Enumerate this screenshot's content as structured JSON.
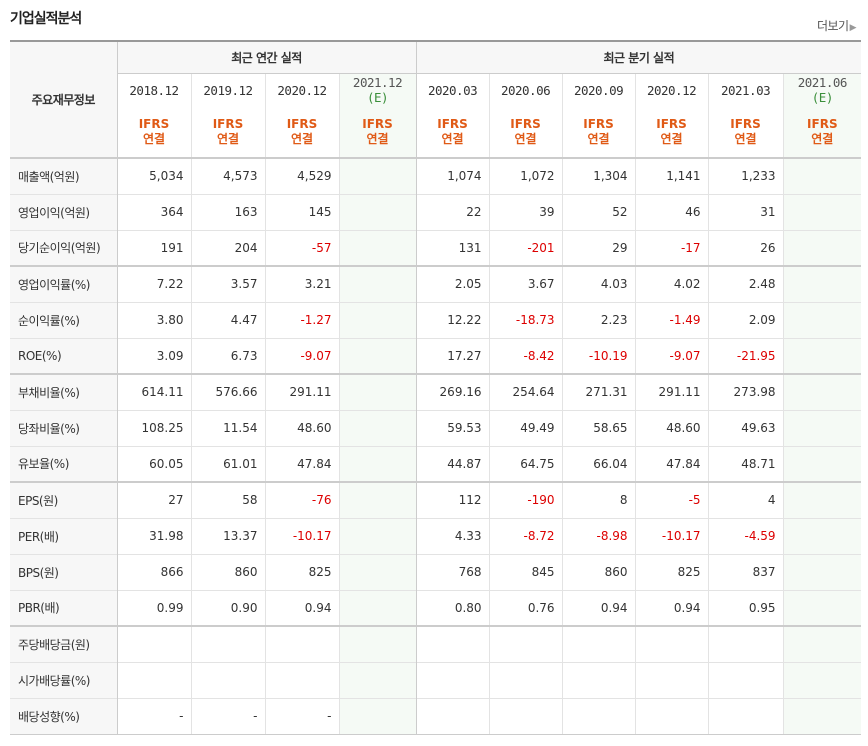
{
  "header": {
    "title": "기업실적분석",
    "more_label": "더보기"
  },
  "table": {
    "corner_label": "주요재무정보",
    "groups": {
      "annual": "최근 연간 실적",
      "quarterly": "최근 분기 실적"
    },
    "periods": [
      "2018.12",
      "2019.12",
      "2020.12",
      "2021.12",
      "2020.03",
      "2020.06",
      "2020.09",
      "2020.12",
      "2021.03",
      "2021.06"
    ],
    "estimate_mark": "(E)",
    "ifrs": "IFRS",
    "consolidated": "연결",
    "rows": [
      {
        "label": "매출액(억원)",
        "values": [
          "5,034",
          "4,573",
          "4,529",
          "",
          "1,074",
          "1,072",
          "1,304",
          "1,141",
          "1,233",
          ""
        ]
      },
      {
        "label": "영업이익(억원)",
        "values": [
          "364",
          "163",
          "145",
          "",
          "22",
          "39",
          "52",
          "46",
          "31",
          ""
        ]
      },
      {
        "label": "당기순이익(억원)",
        "values": [
          "191",
          "204",
          "-57",
          "",
          "131",
          "-201",
          "29",
          "-17",
          "26",
          ""
        ]
      },
      {
        "label": "영업이익률(%)",
        "values": [
          "7.22",
          "3.57",
          "3.21",
          "",
          "2.05",
          "3.67",
          "4.03",
          "4.02",
          "2.48",
          ""
        ]
      },
      {
        "label": "순이익률(%)",
        "values": [
          "3.80",
          "4.47",
          "-1.27",
          "",
          "12.22",
          "-18.73",
          "2.23",
          "-1.49",
          "2.09",
          ""
        ]
      },
      {
        "label": "ROE(%)",
        "values": [
          "3.09",
          "6.73",
          "-9.07",
          "",
          "17.27",
          "-8.42",
          "-10.19",
          "-9.07",
          "-21.95",
          ""
        ]
      },
      {
        "label": "부채비율(%)",
        "values": [
          "614.11",
          "576.66",
          "291.11",
          "",
          "269.16",
          "254.64",
          "271.31",
          "291.11",
          "273.98",
          ""
        ]
      },
      {
        "label": "당좌비율(%)",
        "values": [
          "108.25",
          "11.54",
          "48.60",
          "",
          "59.53",
          "49.49",
          "58.65",
          "48.60",
          "49.63",
          ""
        ]
      },
      {
        "label": "유보율(%)",
        "values": [
          "60.05",
          "61.01",
          "47.84",
          "",
          "44.87",
          "64.75",
          "66.04",
          "47.84",
          "48.71",
          ""
        ]
      },
      {
        "label": "EPS(원)",
        "values": [
          "27",
          "58",
          "-76",
          "",
          "112",
          "-190",
          "8",
          "-5",
          "4",
          ""
        ]
      },
      {
        "label": "PER(배)",
        "values": [
          "31.98",
          "13.37",
          "-10.17",
          "",
          "4.33",
          "-8.72",
          "-8.98",
          "-10.17",
          "-4.59",
          ""
        ]
      },
      {
        "label": "BPS(원)",
        "values": [
          "866",
          "860",
          "825",
          "",
          "768",
          "845",
          "860",
          "825",
          "837",
          ""
        ]
      },
      {
        "label": "PBR(배)",
        "values": [
          "0.99",
          "0.90",
          "0.94",
          "",
          "0.80",
          "0.76",
          "0.94",
          "0.94",
          "0.95",
          ""
        ]
      },
      {
        "label": "주당배당금(원)",
        "values": [
          "",
          "",
          "",
          "",
          "",
          "",
          "",
          "",
          "",
          ""
        ]
      },
      {
        "label": "시가배당률(%)",
        "values": [
          "",
          "",
          "",
          "",
          "",
          "",
          "",
          "",
          "",
          ""
        ]
      },
      {
        "label": "배당성향(%)",
        "values": [
          "-",
          "-",
          "-",
          "",
          "",
          "",
          "",
          "",
          "",
          ""
        ]
      }
    ]
  },
  "colors": {
    "negative": "#dd0000",
    "ifrs": "#e05a16",
    "estimate_bg": "#f5faf5",
    "estimate_mark": "#3a8f3a"
  }
}
